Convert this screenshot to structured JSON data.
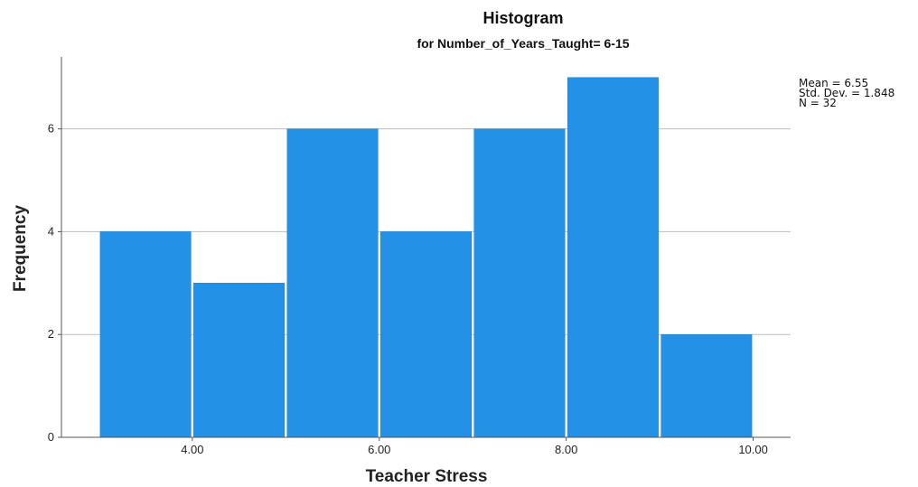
{
  "chart_data": {
    "type": "bar",
    "title": "Histogram",
    "subtitle": "for Number_of_Years_Taught= 6-15",
    "xlabel": "Teacher Stress",
    "ylabel": "Frequency",
    "bins": [
      {
        "x0": 3,
        "x1": 4,
        "count": 4
      },
      {
        "x0": 4,
        "x1": 5,
        "count": 3
      },
      {
        "x0": 5,
        "x1": 6,
        "count": 6
      },
      {
        "x0": 6,
        "x1": 7,
        "count": 4
      },
      {
        "x0": 7,
        "x1": 8,
        "count": 6
      },
      {
        "x0": 8,
        "x1": 9,
        "count": 7
      },
      {
        "x0": 9,
        "x1": 10,
        "count": 2
      }
    ],
    "xticks": [
      {
        "value": 4,
        "label": "4.00"
      },
      {
        "value": 6,
        "label": "6.00"
      },
      {
        "value": 8,
        "label": "8.00"
      },
      {
        "value": 10,
        "label": "10.00"
      }
    ],
    "yticks": [
      {
        "value": 0,
        "label": "0"
      },
      {
        "value": 2,
        "label": "2"
      },
      {
        "value": 4,
        "label": "4"
      },
      {
        "value": 6,
        "label": "6"
      }
    ],
    "xlim": [
      2.6,
      10.4
    ],
    "ylim": [
      0,
      7.4
    ],
    "grid": "horizontal",
    "bar_color": "#2291e6",
    "stats": [
      "Mean = 6.55",
      "Std. Dev. = 1.848",
      "N = 32"
    ]
  }
}
